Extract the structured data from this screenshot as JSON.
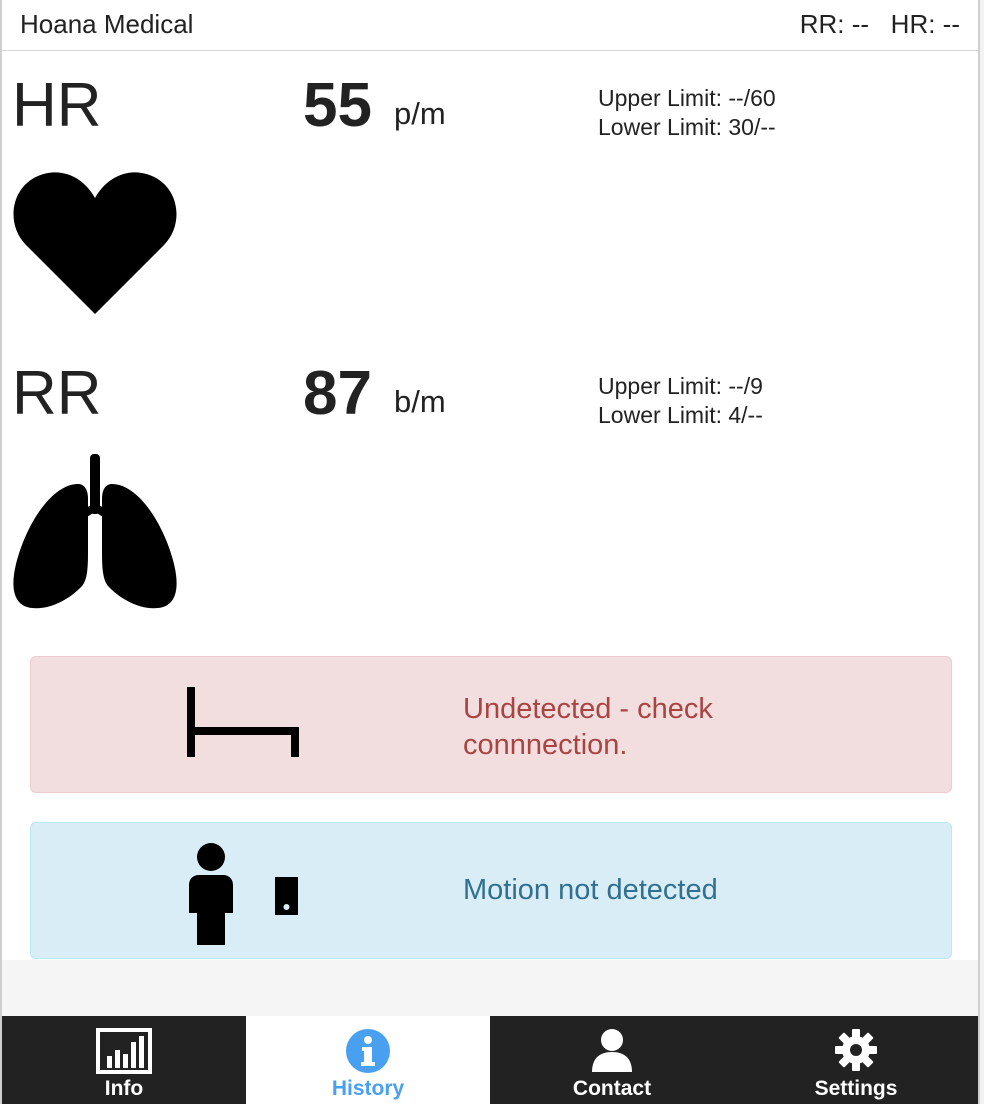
{
  "header": {
    "title": "Hoana Medical",
    "status": "RR: --   HR: --"
  },
  "hr": {
    "label": "HR",
    "value": "55",
    "unit": "p/m",
    "upper_limit": "Upper Limit: --/60",
    "lower_limit": "Lower Limit: 30/--",
    "icon": "heart-icon"
  },
  "rr": {
    "label": "RR",
    "value": "87",
    "unit": "b/m",
    "upper_limit": "Upper Limit: --/9",
    "lower_limit": "Lower Limit: 4/--",
    "icon": "lungs-icon"
  },
  "alerts": {
    "bed": {
      "message": "Undetected - check connnection.",
      "icon": "bed-icon",
      "color": "#a94442",
      "background": "#f2dede"
    },
    "motion": {
      "message": "Motion not detected",
      "icon": "person-device-icon",
      "color": "#31708f",
      "background": "#d9edf7"
    }
  },
  "tabs": [
    {
      "label": "Info",
      "icon": "bar-chart-icon",
      "active": false
    },
    {
      "label": "History",
      "icon": "info-circle-icon",
      "active": true
    },
    {
      "label": "Contact",
      "icon": "user-icon",
      "active": false
    },
    {
      "label": "Settings",
      "icon": "gear-icon",
      "active": false
    }
  ],
  "colors": {
    "tab_active": "#4aa0f0",
    "tab_bar": "#222222"
  }
}
